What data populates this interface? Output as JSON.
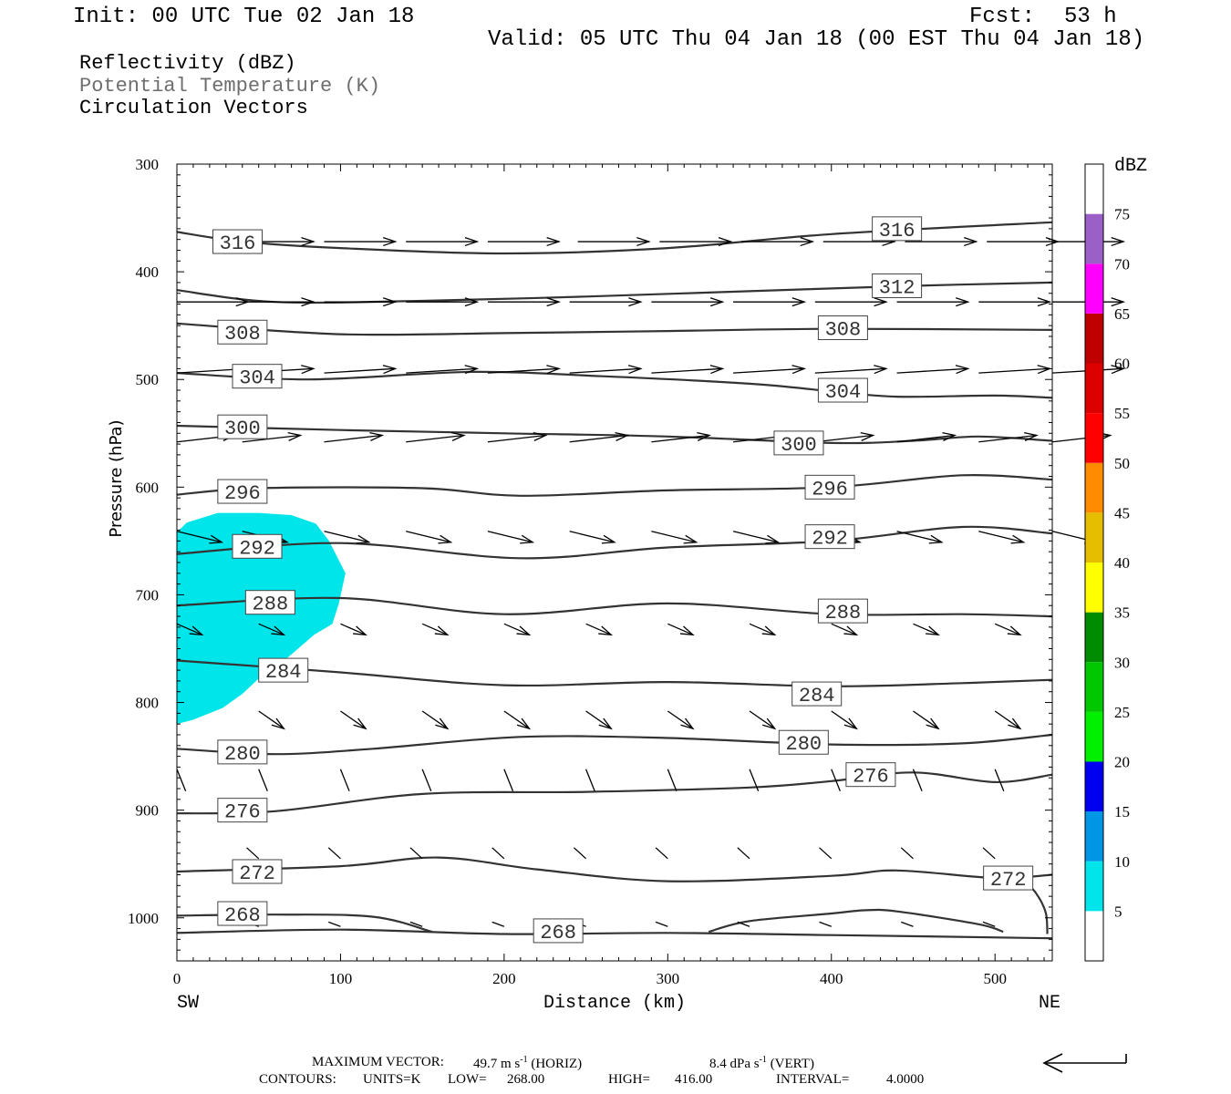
{
  "header": {
    "init": "Init: 00 UTC Tue 02 Jan 18",
    "fcst_label": "Fcst:",
    "fcst_value": "53 h",
    "valid": "Valid: 05 UTC Thu 04 Jan 18 (00 EST Thu 04 Jan 18)"
  },
  "fields": {
    "reflectivity": "Reflectivity (dBZ)",
    "potential_temperature": "Potential Temperature (K)",
    "circulation": "Circulation Vectors"
  },
  "footer": {
    "max_vector_label": "MAXIMUM VECTOR:",
    "max_vector_horiz": "49.7 m s",
    "horiz_tag": "(HORIZ)",
    "max_vector_vert": "8.4 dPa s",
    "vert_tag": "(VERT)",
    "exponent": "-1",
    "contours_label": "CONTOURS:",
    "units": "UNITS=K",
    "low": "LOW=",
    "low_value": "268.00",
    "high": "HIGH=",
    "high_value": "416.00",
    "interval": "INTERVAL=",
    "interval_value": "4.0000"
  },
  "colors": {
    "contour": "#333333",
    "reflectivity_5": "#00e5ea",
    "arrow": "#000000"
  },
  "chart_data": {
    "type": "contour",
    "xlabel": "Distance (km)",
    "ylabel": "Pressure (hPa)",
    "x_ticks": [
      0,
      100,
      200,
      300,
      400,
      500
    ],
    "y_ticks": [
      300,
      400,
      500,
      600,
      700,
      800,
      900,
      1000
    ],
    "xlim": [
      0,
      535
    ],
    "ylim": [
      300,
      1040
    ],
    "x_end_labels": {
      "left": "SW",
      "right": "NE"
    },
    "colorbar": {
      "title": "dBZ",
      "levels": [
        5,
        10,
        15,
        20,
        25,
        30,
        35,
        40,
        45,
        50,
        55,
        60,
        65,
        70,
        75
      ],
      "colors": [
        "#00e5ea",
        "#0096e6",
        "#0000f0",
        "#00f000",
        "#00c800",
        "#008c00",
        "#ffff00",
        "#e6be00",
        "#ff8c00",
        "#ff0000",
        "#dc0000",
        "#be0000",
        "#ff00ff",
        "#9b5fc8",
        "#ffffff"
      ]
    },
    "contour_levels": [
      {
        "value": 316,
        "points": [
          [
            0,
            363
          ],
          [
            40,
            372
          ],
          [
            100,
            378
          ],
          [
            200,
            383
          ],
          [
            300,
            378
          ],
          [
            400,
            365
          ],
          [
            535,
            354
          ]
        ]
      },
      {
        "value": 312,
        "points": [
          [
            0,
            417
          ],
          [
            60,
            428
          ],
          [
            150,
            427
          ],
          [
            250,
            423
          ],
          [
            350,
            418
          ],
          [
            450,
            413
          ],
          [
            535,
            410
          ]
        ]
      },
      {
        "value": 308,
        "points": [
          [
            0,
            448
          ],
          [
            100,
            458
          ],
          [
            200,
            457
          ],
          [
            300,
            455
          ],
          [
            400,
            453
          ],
          [
            535,
            454
          ]
        ]
      },
      {
        "value": 304,
        "points": [
          [
            0,
            494
          ],
          [
            80,
            500
          ],
          [
            180,
            493
          ],
          [
            260,
            497
          ],
          [
            350,
            504
          ],
          [
            400,
            511
          ],
          [
            440,
            516
          ],
          [
            500,
            515
          ],
          [
            535,
            517
          ]
        ]
      },
      {
        "value": 300,
        "points": [
          [
            0,
            543
          ],
          [
            100,
            547
          ],
          [
            200,
            550
          ],
          [
            300,
            553
          ],
          [
            400,
            559
          ],
          [
            450,
            557
          ],
          [
            490,
            553
          ],
          [
            535,
            557
          ]
        ]
      },
      {
        "value": 296,
        "points": [
          [
            0,
            607
          ],
          [
            50,
            601
          ],
          [
            150,
            601
          ],
          [
            210,
            608
          ],
          [
            300,
            603
          ],
          [
            400,
            600
          ],
          [
            480,
            589
          ],
          [
            535,
            593
          ]
        ]
      },
      {
        "value": 292,
        "points": [
          [
            0,
            662
          ],
          [
            100,
            652
          ],
          [
            210,
            666
          ],
          [
            300,
            656
          ],
          [
            400,
            650
          ],
          [
            480,
            637
          ],
          [
            535,
            643
          ]
        ]
      },
      {
        "value": 288,
        "points": [
          [
            0,
            710
          ],
          [
            100,
            703
          ],
          [
            200,
            718
          ],
          [
            300,
            708
          ],
          [
            400,
            718
          ],
          [
            480,
            718
          ],
          [
            535,
            720
          ]
        ]
      },
      {
        "value": 284,
        "points": [
          [
            0,
            761
          ],
          [
            100,
            772
          ],
          [
            200,
            784
          ],
          [
            300,
            781
          ],
          [
            400,
            785
          ],
          [
            480,
            782
          ],
          [
            535,
            779
          ]
        ]
      },
      {
        "value": 280,
        "points": [
          [
            0,
            843
          ],
          [
            60,
            848
          ],
          [
            120,
            843
          ],
          [
            210,
            832
          ],
          [
            300,
            833
          ],
          [
            400,
            839
          ],
          [
            480,
            838
          ],
          [
            535,
            830
          ]
        ]
      },
      {
        "value": 276,
        "points": [
          [
            0,
            903
          ],
          [
            60,
            901
          ],
          [
            150,
            885
          ],
          [
            250,
            883
          ],
          [
            350,
            879
          ],
          [
            400,
            873
          ],
          [
            450,
            865
          ],
          [
            500,
            874
          ],
          [
            535,
            867
          ]
        ]
      },
      {
        "value": 272,
        "points": [
          [
            0,
            957
          ],
          [
            100,
            952
          ],
          [
            160,
            944
          ],
          [
            220,
            955
          ],
          [
            300,
            966
          ],
          [
            400,
            961
          ],
          [
            440,
            956
          ],
          [
            500,
            963
          ],
          [
            535,
            960
          ]
        ]
      },
      {
        "value": 268,
        "points": [
          [
            0,
            998
          ],
          [
            60,
            997
          ],
          [
            120,
            999
          ],
          [
            156,
            1013
          ]
        ]
      },
      {
        "value": 268,
        "points": [
          [
            0,
            1014
          ],
          [
            100,
            1011
          ],
          [
            200,
            1015
          ],
          [
            300,
            1014
          ],
          [
            400,
            1016
          ],
          [
            535,
            1019
          ]
        ]
      },
      {
        "value": 268,
        "points": [
          [
            325,
            1013
          ],
          [
            350,
            1003
          ],
          [
            400,
            996
          ],
          [
            420,
            993
          ],
          [
            440,
            994
          ],
          [
            490,
            1006
          ],
          [
            505,
            1013
          ]
        ]
      },
      {
        "value": 272,
        "points": [
          [
            515,
            961
          ],
          [
            525,
            977
          ],
          [
            531,
            995
          ],
          [
            532,
            1015
          ]
        ]
      }
    ],
    "contour_labels": [
      {
        "text": "316",
        "x": 22,
        "p": 372
      },
      {
        "text": "316",
        "x": 425,
        "p": 360
      },
      {
        "text": "312",
        "x": 425,
        "p": 413
      },
      {
        "text": "308",
        "x": 25,
        "p": 456
      },
      {
        "text": "308",
        "x": 392,
        "p": 452
      },
      {
        "text": "304",
        "x": 34,
        "p": 497
      },
      {
        "text": "304",
        "x": 392,
        "p": 510
      },
      {
        "text": "300",
        "x": 25,
        "p": 544
      },
      {
        "text": "300",
        "x": 365,
        "p": 559
      },
      {
        "text": "296",
        "x": 25,
        "p": 604
      },
      {
        "text": "296",
        "x": 384,
        "p": 600
      },
      {
        "text": "292",
        "x": 34,
        "p": 655
      },
      {
        "text": "292",
        "x": 384,
        "p": 646
      },
      {
        "text": "288",
        "x": 42,
        "p": 707
      },
      {
        "text": "288",
        "x": 392,
        "p": 715
      },
      {
        "text": "284",
        "x": 50,
        "p": 770
      },
      {
        "text": "284",
        "x": 376,
        "p": 792
      },
      {
        "text": "280",
        "x": 25,
        "p": 846
      },
      {
        "text": "280",
        "x": 368,
        "p": 837
      },
      {
        "text": "276",
        "x": 25,
        "p": 900
      },
      {
        "text": "276",
        "x": 409,
        "p": 867
      },
      {
        "text": "272",
        "x": 34,
        "p": 957
      },
      {
        "text": "272",
        "x": 493,
        "p": 963
      },
      {
        "text": "268",
        "x": 25,
        "p": 996
      },
      {
        "text": "268",
        "x": 218,
        "p": 1012
      }
    ],
    "reflectivity_regions": [
      {
        "dbz": 5,
        "points": [
          [
            0,
            642
          ],
          [
            6,
            633
          ],
          [
            25,
            624
          ],
          [
            50,
            624
          ],
          [
            70,
            626
          ],
          [
            85,
            634
          ],
          [
            93,
            650
          ],
          [
            103,
            680
          ],
          [
            99,
            708
          ],
          [
            95,
            727
          ],
          [
            84,
            737
          ],
          [
            68,
            758
          ],
          [
            52,
            775
          ],
          [
            40,
            792
          ],
          [
            28,
            805
          ],
          [
            10,
            816
          ],
          [
            0,
            820
          ]
        ]
      }
    ],
    "vectors": [
      {
        "p": 372,
        "u": 1,
        "w": 0,
        "xs": [
          40,
          90,
          140,
          190,
          245,
          295,
          345,
          395,
          445,
          495,
          535
        ]
      },
      {
        "p": 428,
        "u": 1,
        "w": 0,
        "xs": [
          0,
          40,
          90,
          140,
          190,
          240,
          290,
          340,
          390,
          440,
          490,
          535
        ]
      },
      {
        "p": 494,
        "u": 1,
        "w": 0.02,
        "xs": [
          0,
          40,
          90,
          140,
          190,
          240,
          290,
          340,
          390,
          440,
          490,
          535
        ]
      },
      {
        "p": 558,
        "u": 0.8,
        "w": 0.03,
        "xs": [
          0,
          40,
          90,
          140,
          190,
          240,
          290,
          340,
          390,
          440,
          490,
          535
        ]
      },
      {
        "p": 641,
        "u": 0.6,
        "w": -0.05,
        "xs": [
          0,
          40,
          90,
          140,
          190,
          240,
          290,
          340,
          390,
          440,
          490,
          535
        ]
      },
      {
        "p": 727,
        "u": 0.3,
        "w": -0.05,
        "xs": [
          0,
          50,
          100,
          150,
          200,
          250,
          300,
          350,
          400,
          450,
          500
        ]
      },
      {
        "p": 808,
        "u": 0.3,
        "w": -0.08,
        "xs": [
          50,
          100,
          150,
          200,
          250,
          300,
          350,
          400,
          450,
          500
        ]
      },
      {
        "p": 862,
        "u": 0.05,
        "w": -0.1,
        "xs": [
          0,
          50,
          100,
          150,
          200,
          250,
          300,
          350,
          400,
          450,
          500
        ]
      },
      {
        "p": 945,
        "u": -0.1,
        "w": 0.05,
        "xs": [
          50,
          100,
          150,
          200,
          250,
          300,
          350,
          400,
          450,
          500
        ]
      },
      {
        "p": 1008,
        "u": -0.1,
        "w": 0.02,
        "xs": [
          50,
          100,
          150,
          200,
          250,
          300,
          350,
          400,
          450,
          500
        ]
      }
    ]
  }
}
